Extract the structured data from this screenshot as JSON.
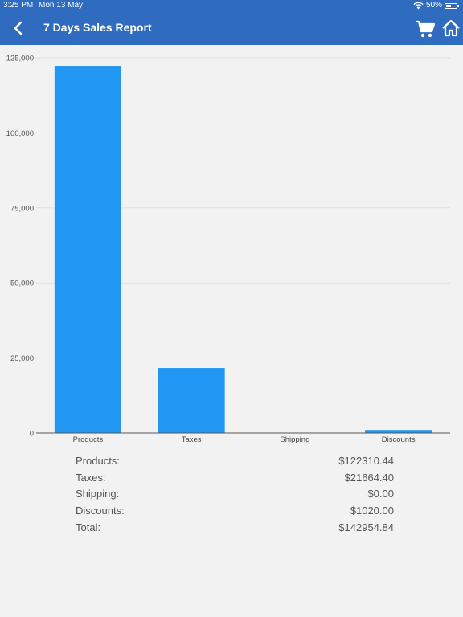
{
  "status_bar": {
    "time": "3:25 PM",
    "date": "Mon 13 May",
    "battery": "50%"
  },
  "nav": {
    "title": "7 Days Sales Report",
    "icons": [
      "chevron-left-icon",
      "cart-icon",
      "home-icon"
    ]
  },
  "colors": {
    "header": "#2f6cc0",
    "bar": "#2196f3",
    "background": "#f2f2f2"
  },
  "chart_data": {
    "type": "bar",
    "categories": [
      "Products",
      "Taxes",
      "Shipping",
      "Discounts"
    ],
    "values": [
      122310.44,
      21664.4,
      0.0,
      1020.0
    ],
    "yticks": [
      "0",
      "25,000",
      "50,000",
      "75,000",
      "100,000",
      "125,000"
    ],
    "ylim": [
      0,
      125000
    ],
    "grid": true
  },
  "summary": [
    {
      "label": "Products:",
      "value": "$122310.44"
    },
    {
      "label": "Taxes:",
      "value": "$21664.40"
    },
    {
      "label": "Shipping:",
      "value": "$0.00"
    },
    {
      "label": "Discounts:",
      "value": "$1020.00"
    },
    {
      "label": "Total:",
      "value": "$142954.84"
    }
  ]
}
